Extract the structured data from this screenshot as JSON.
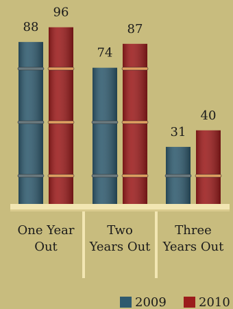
{
  "chart_data": {
    "type": "bar",
    "categories": [
      "One Year Out",
      "Two Years Out",
      "Three Years Out"
    ],
    "series": [
      {
        "name": "2009",
        "color": "#2f5a6e",
        "values": [
          88,
          74,
          31
        ]
      },
      {
        "name": "2010",
        "color": "#9b1c1c",
        "values": [
          96,
          87,
          40
        ]
      }
    ],
    "ylim": [
      0,
      100
    ]
  }
}
